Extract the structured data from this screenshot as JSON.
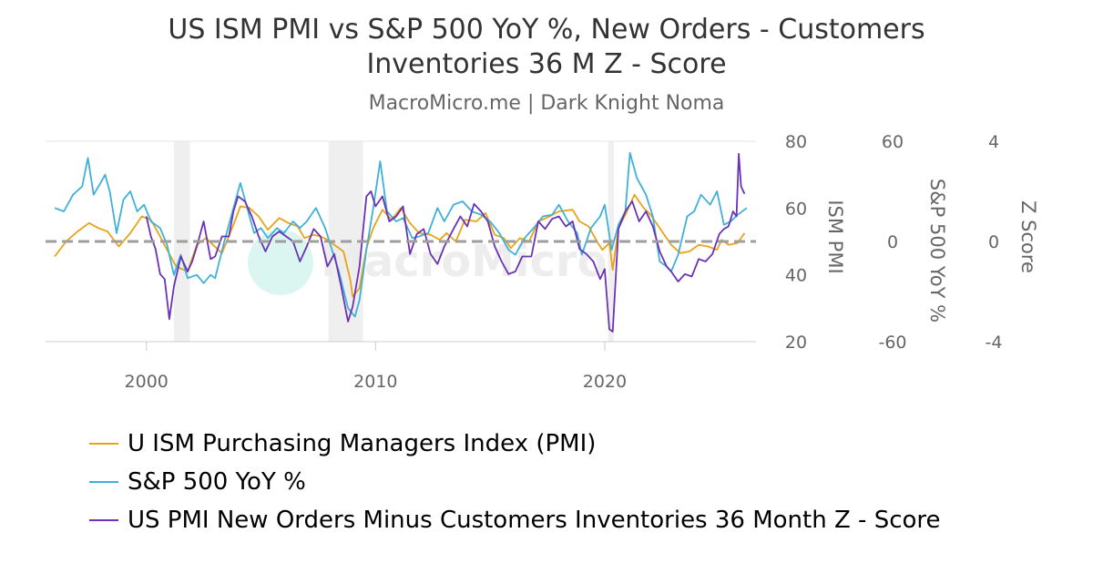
{
  "title_line1": "US ISM PMI vs S&P 500 YoY %, New Orders - Customers",
  "title_line2": "Inventories 36 M Z - Score",
  "subtitle": "MacroMicro.me | Dark Knight Noma",
  "watermark": "MacroMicro",
  "chart_data": {
    "type": "line",
    "xlim": [
      1995.6,
      2026.6
    ],
    "x_ticks": [
      2000,
      2010,
      2020
    ],
    "x_tick_labels": [
      "2000",
      "2010",
      "2020"
    ],
    "reference_line": {
      "value": 0,
      "axis": "zscore",
      "style": "dashed",
      "color": "#9e9e9e"
    },
    "recessions": [
      [
        2001.2,
        2001.9
      ],
      [
        2007.95,
        2009.45
      ],
      [
        2020.15,
        2020.4
      ]
    ],
    "y_axes": [
      {
        "id": "pmi",
        "label": "ISM PMI",
        "ylim": [
          20,
          80
        ],
        "ticks": [
          20,
          40,
          60,
          80
        ]
      },
      {
        "id": "spx",
        "label": "S&P 500 YoY %",
        "ylim": [
          -60,
          60
        ],
        "ticks": [
          -60,
          0,
          60
        ]
      },
      {
        "id": "zscore",
        "label": "Z Score",
        "ylim": [
          -4,
          4
        ],
        "ticks": [
          -4,
          0,
          4
        ]
      }
    ],
    "series": [
      {
        "name": "U ISM Purchasing Managers Index (PMI)",
        "axis": "pmi",
        "color": "#e8a317",
        "points": [
          [
            1996.0,
            45.5
          ],
          [
            1996.5,
            50
          ],
          [
            1997.0,
            53
          ],
          [
            1997.5,
            55.5
          ],
          [
            1997.9,
            54
          ],
          [
            1998.3,
            53
          ],
          [
            1998.8,
            48.5
          ],
          [
            1999.3,
            52.5
          ],
          [
            1999.8,
            57.5
          ],
          [
            2000.2,
            56.5
          ],
          [
            2000.6,
            51.5
          ],
          [
            2000.9,
            47.5
          ],
          [
            2001.3,
            42.5
          ],
          [
            2001.8,
            41
          ],
          [
            2002.2,
            49
          ],
          [
            2002.6,
            51
          ],
          [
            2002.9,
            49
          ],
          [
            2003.3,
            46.5
          ],
          [
            2003.8,
            55
          ],
          [
            2004.1,
            60.5
          ],
          [
            2004.5,
            60
          ],
          [
            2004.9,
            57.5
          ],
          [
            2005.3,
            53.5
          ],
          [
            2005.8,
            57
          ],
          [
            2006.2,
            55.5
          ],
          [
            2006.6,
            54.5
          ],
          [
            2006.9,
            51
          ],
          [
            2007.3,
            52
          ],
          [
            2007.6,
            51.5
          ],
          [
            2007.9,
            50.5
          ],
          [
            2008.3,
            48.5
          ],
          [
            2008.6,
            47
          ],
          [
            2008.9,
            38.5
          ],
          [
            2009.0,
            33.5
          ],
          [
            2009.3,
            36
          ],
          [
            2009.6,
            48
          ],
          [
            2009.9,
            54
          ],
          [
            2010.3,
            59.5
          ],
          [
            2010.7,
            56.5
          ],
          [
            2011.1,
            60
          ],
          [
            2011.5,
            55.5
          ],
          [
            2011.9,
            52.5
          ],
          [
            2012.4,
            52
          ],
          [
            2012.8,
            50.5
          ],
          [
            2013.1,
            52.5
          ],
          [
            2013.5,
            50
          ],
          [
            2013.9,
            56.5
          ],
          [
            2014.4,
            56
          ],
          [
            2014.8,
            58.5
          ],
          [
            2015.2,
            52
          ],
          [
            2015.6,
            51
          ],
          [
            2015.9,
            48
          ],
          [
            2016.3,
            51
          ],
          [
            2016.7,
            50
          ],
          [
            2017.1,
            56
          ],
          [
            2017.6,
            57.5
          ],
          [
            2018.0,
            59
          ],
          [
            2018.6,
            59.5
          ],
          [
            2018.9,
            56
          ],
          [
            2019.3,
            54.5
          ],
          [
            2019.7,
            49.5
          ],
          [
            2019.9,
            47.5
          ],
          [
            2020.2,
            49.5
          ],
          [
            2020.35,
            41.5
          ],
          [
            2020.6,
            54
          ],
          [
            2020.9,
            58
          ],
          [
            2021.3,
            64
          ],
          [
            2021.7,
            60
          ],
          [
            2022.0,
            58
          ],
          [
            2022.5,
            53
          ],
          [
            2022.9,
            49
          ],
          [
            2023.3,
            46.5
          ],
          [
            2023.7,
            47
          ],
          [
            2024.1,
            49
          ],
          [
            2024.5,
            48.5
          ],
          [
            2024.9,
            47.5
          ],
          [
            2025.1,
            50.5
          ],
          [
            2025.4,
            49
          ],
          [
            2025.8,
            49.5
          ],
          [
            2026.1,
            52.5
          ]
        ]
      },
      {
        "name": "S&P 500 YoY %",
        "axis": "spx",
        "color": "#3fb0d8",
        "points": [
          [
            1996.0,
            20
          ],
          [
            1996.4,
            18
          ],
          [
            1996.8,
            28
          ],
          [
            1997.2,
            33
          ],
          [
            1997.45,
            50
          ],
          [
            1997.7,
            28
          ],
          [
            1998.0,
            35
          ],
          [
            1998.2,
            40
          ],
          [
            1998.4,
            30
          ],
          [
            1998.7,
            5
          ],
          [
            1999.0,
            25
          ],
          [
            1999.3,
            30
          ],
          [
            1999.6,
            18
          ],
          [
            1999.9,
            22
          ],
          [
            2000.2,
            12
          ],
          [
            2000.6,
            8
          ],
          [
            2000.9,
            -2
          ],
          [
            2001.2,
            -20
          ],
          [
            2001.5,
            -8
          ],
          [
            2001.8,
            -22
          ],
          [
            2002.2,
            -20
          ],
          [
            2002.5,
            -25
          ],
          [
            2002.8,
            -20
          ],
          [
            2003.0,
            -22
          ],
          [
            2003.4,
            0
          ],
          [
            2003.8,
            20
          ],
          [
            2004.1,
            35
          ],
          [
            2004.4,
            20
          ],
          [
            2004.7,
            5
          ],
          [
            2005.0,
            8
          ],
          [
            2005.3,
            2
          ],
          [
            2005.7,
            8
          ],
          [
            2006.0,
            5
          ],
          [
            2006.4,
            12
          ],
          [
            2006.7,
            8
          ],
          [
            2007.0,
            12
          ],
          [
            2007.4,
            20
          ],
          [
            2007.8,
            8
          ],
          [
            2008.1,
            -5
          ],
          [
            2008.4,
            -18
          ],
          [
            2008.8,
            -40
          ],
          [
            2009.1,
            -45
          ],
          [
            2009.3,
            -35
          ],
          [
            2009.6,
            -5
          ],
          [
            2009.9,
            20
          ],
          [
            2010.2,
            48
          ],
          [
            2010.5,
            18
          ],
          [
            2010.9,
            12
          ],
          [
            2011.2,
            14
          ],
          [
            2011.6,
            2
          ],
          [
            2011.9,
            3
          ],
          [
            2012.3,
            5
          ],
          [
            2012.7,
            20
          ],
          [
            2013.0,
            12
          ],
          [
            2013.4,
            22
          ],
          [
            2013.8,
            24
          ],
          [
            2014.2,
            18
          ],
          [
            2014.6,
            16
          ],
          [
            2015.0,
            12
          ],
          [
            2015.4,
            5
          ],
          [
            2015.8,
            -5
          ],
          [
            2016.1,
            -8
          ],
          [
            2016.5,
            2
          ],
          [
            2016.9,
            8
          ],
          [
            2017.3,
            15
          ],
          [
            2017.7,
            16
          ],
          [
            2018.0,
            22
          ],
          [
            2018.4,
            12
          ],
          [
            2018.8,
            5
          ],
          [
            2019.0,
            -8
          ],
          [
            2019.4,
            8
          ],
          [
            2019.8,
            15
          ],
          [
            2020.0,
            22
          ],
          [
            2020.3,
            -5
          ],
          [
            2020.6,
            10
          ],
          [
            2020.9,
            18
          ],
          [
            2021.1,
            53
          ],
          [
            2021.4,
            38
          ],
          [
            2021.8,
            28
          ],
          [
            2022.1,
            15
          ],
          [
            2022.4,
            -12
          ],
          [
            2022.7,
            -15
          ],
          [
            2022.9,
            -18
          ],
          [
            2023.2,
            -8
          ],
          [
            2023.6,
            15
          ],
          [
            2023.9,
            18
          ],
          [
            2024.2,
            28
          ],
          [
            2024.6,
            22
          ],
          [
            2024.9,
            30
          ],
          [
            2025.2,
            10
          ],
          [
            2025.5,
            12
          ],
          [
            2025.8,
            16
          ],
          [
            2026.2,
            20
          ]
        ]
      },
      {
        "name": "US PMI New Orders Minus Customers Inventories 36 Month Z - Score",
        "axis": "zscore",
        "color": "#6a32b4",
        "points": [
          [
            2000.0,
            1.0
          ],
          [
            2000.2,
            0.2
          ],
          [
            2000.4,
            -0.3
          ],
          [
            2000.6,
            -1.3
          ],
          [
            2000.8,
            -1.5
          ],
          [
            2001.0,
            -3.1
          ],
          [
            2001.2,
            -1.8
          ],
          [
            2001.5,
            -0.6
          ],
          [
            2001.8,
            -1.2
          ],
          [
            2002.0,
            -0.8
          ],
          [
            2002.2,
            -0.2
          ],
          [
            2002.5,
            0.8
          ],
          [
            2002.8,
            -0.7
          ],
          [
            2003.0,
            -0.6
          ],
          [
            2003.3,
            0.2
          ],
          [
            2003.6,
            0.2
          ],
          [
            2003.8,
            1.2
          ],
          [
            2004.0,
            1.8
          ],
          [
            2004.3,
            1.6
          ],
          [
            2004.6,
            1.0
          ],
          [
            2004.9,
            0.2
          ],
          [
            2005.2,
            -0.4
          ],
          [
            2005.5,
            0.2
          ],
          [
            2005.8,
            0.4
          ],
          [
            2006.1,
            0.2
          ],
          [
            2006.4,
            0.0
          ],
          [
            2006.7,
            -0.8
          ],
          [
            2007.0,
            -0.2
          ],
          [
            2007.3,
            0.5
          ],
          [
            2007.6,
            0.2
          ],
          [
            2007.9,
            -1.0
          ],
          [
            2008.2,
            -0.5
          ],
          [
            2008.5,
            -1.8
          ],
          [
            2008.8,
            -3.2
          ],
          [
            2009.0,
            -2.6
          ],
          [
            2009.3,
            -1.0
          ],
          [
            2009.6,
            1.8
          ],
          [
            2009.8,
            2.0
          ],
          [
            2010.0,
            1.4
          ],
          [
            2010.3,
            1.8
          ],
          [
            2010.6,
            0.8
          ],
          [
            2010.9,
            1.0
          ],
          [
            2011.2,
            1.4
          ],
          [
            2011.5,
            -0.5
          ],
          [
            2011.8,
            0.3
          ],
          [
            2012.1,
            0.5
          ],
          [
            2012.4,
            -0.5
          ],
          [
            2012.7,
            -0.9
          ],
          [
            2013.0,
            -0.2
          ],
          [
            2013.4,
            0.5
          ],
          [
            2013.7,
            1.0
          ],
          [
            2014.0,
            0.6
          ],
          [
            2014.3,
            1.5
          ],
          [
            2014.6,
            1.2
          ],
          [
            2014.9,
            0.8
          ],
          [
            2015.2,
            -0.2
          ],
          [
            2015.5,
            -0.8
          ],
          [
            2015.8,
            -1.3
          ],
          [
            2016.1,
            -1.2
          ],
          [
            2016.4,
            -0.6
          ],
          [
            2016.8,
            -0.6
          ],
          [
            2017.1,
            0.8
          ],
          [
            2017.4,
            0.5
          ],
          [
            2017.7,
            0.9
          ],
          [
            2018.0,
            1.0
          ],
          [
            2018.3,
            0.6
          ],
          [
            2018.6,
            0.8
          ],
          [
            2018.9,
            -0.3
          ],
          [
            2019.2,
            -0.5
          ],
          [
            2019.5,
            -0.8
          ],
          [
            2019.8,
            -1.5
          ],
          [
            2020.0,
            -1.1
          ],
          [
            2020.2,
            -3.5
          ],
          [
            2020.35,
            -3.6
          ],
          [
            2020.6,
            0.5
          ],
          [
            2020.9,
            1.2
          ],
          [
            2021.2,
            1.6
          ],
          [
            2021.5,
            0.8
          ],
          [
            2021.8,
            1.2
          ],
          [
            2022.1,
            0.6
          ],
          [
            2022.4,
            -0.4
          ],
          [
            2022.7,
            -1.0
          ],
          [
            2022.9,
            -1.2
          ],
          [
            2023.2,
            -1.6
          ],
          [
            2023.5,
            -1.3
          ],
          [
            2023.8,
            -1.4
          ],
          [
            2024.1,
            -0.7
          ],
          [
            2024.4,
            -0.8
          ],
          [
            2024.7,
            -0.5
          ],
          [
            2025.0,
            0.3
          ],
          [
            2025.2,
            0.5
          ],
          [
            2025.4,
            0.6
          ],
          [
            2025.6,
            1.2
          ],
          [
            2025.75,
            1.0
          ],
          [
            2025.85,
            3.5
          ],
          [
            2025.95,
            2.2
          ],
          [
            2026.1,
            1.9
          ]
        ]
      }
    ]
  }
}
